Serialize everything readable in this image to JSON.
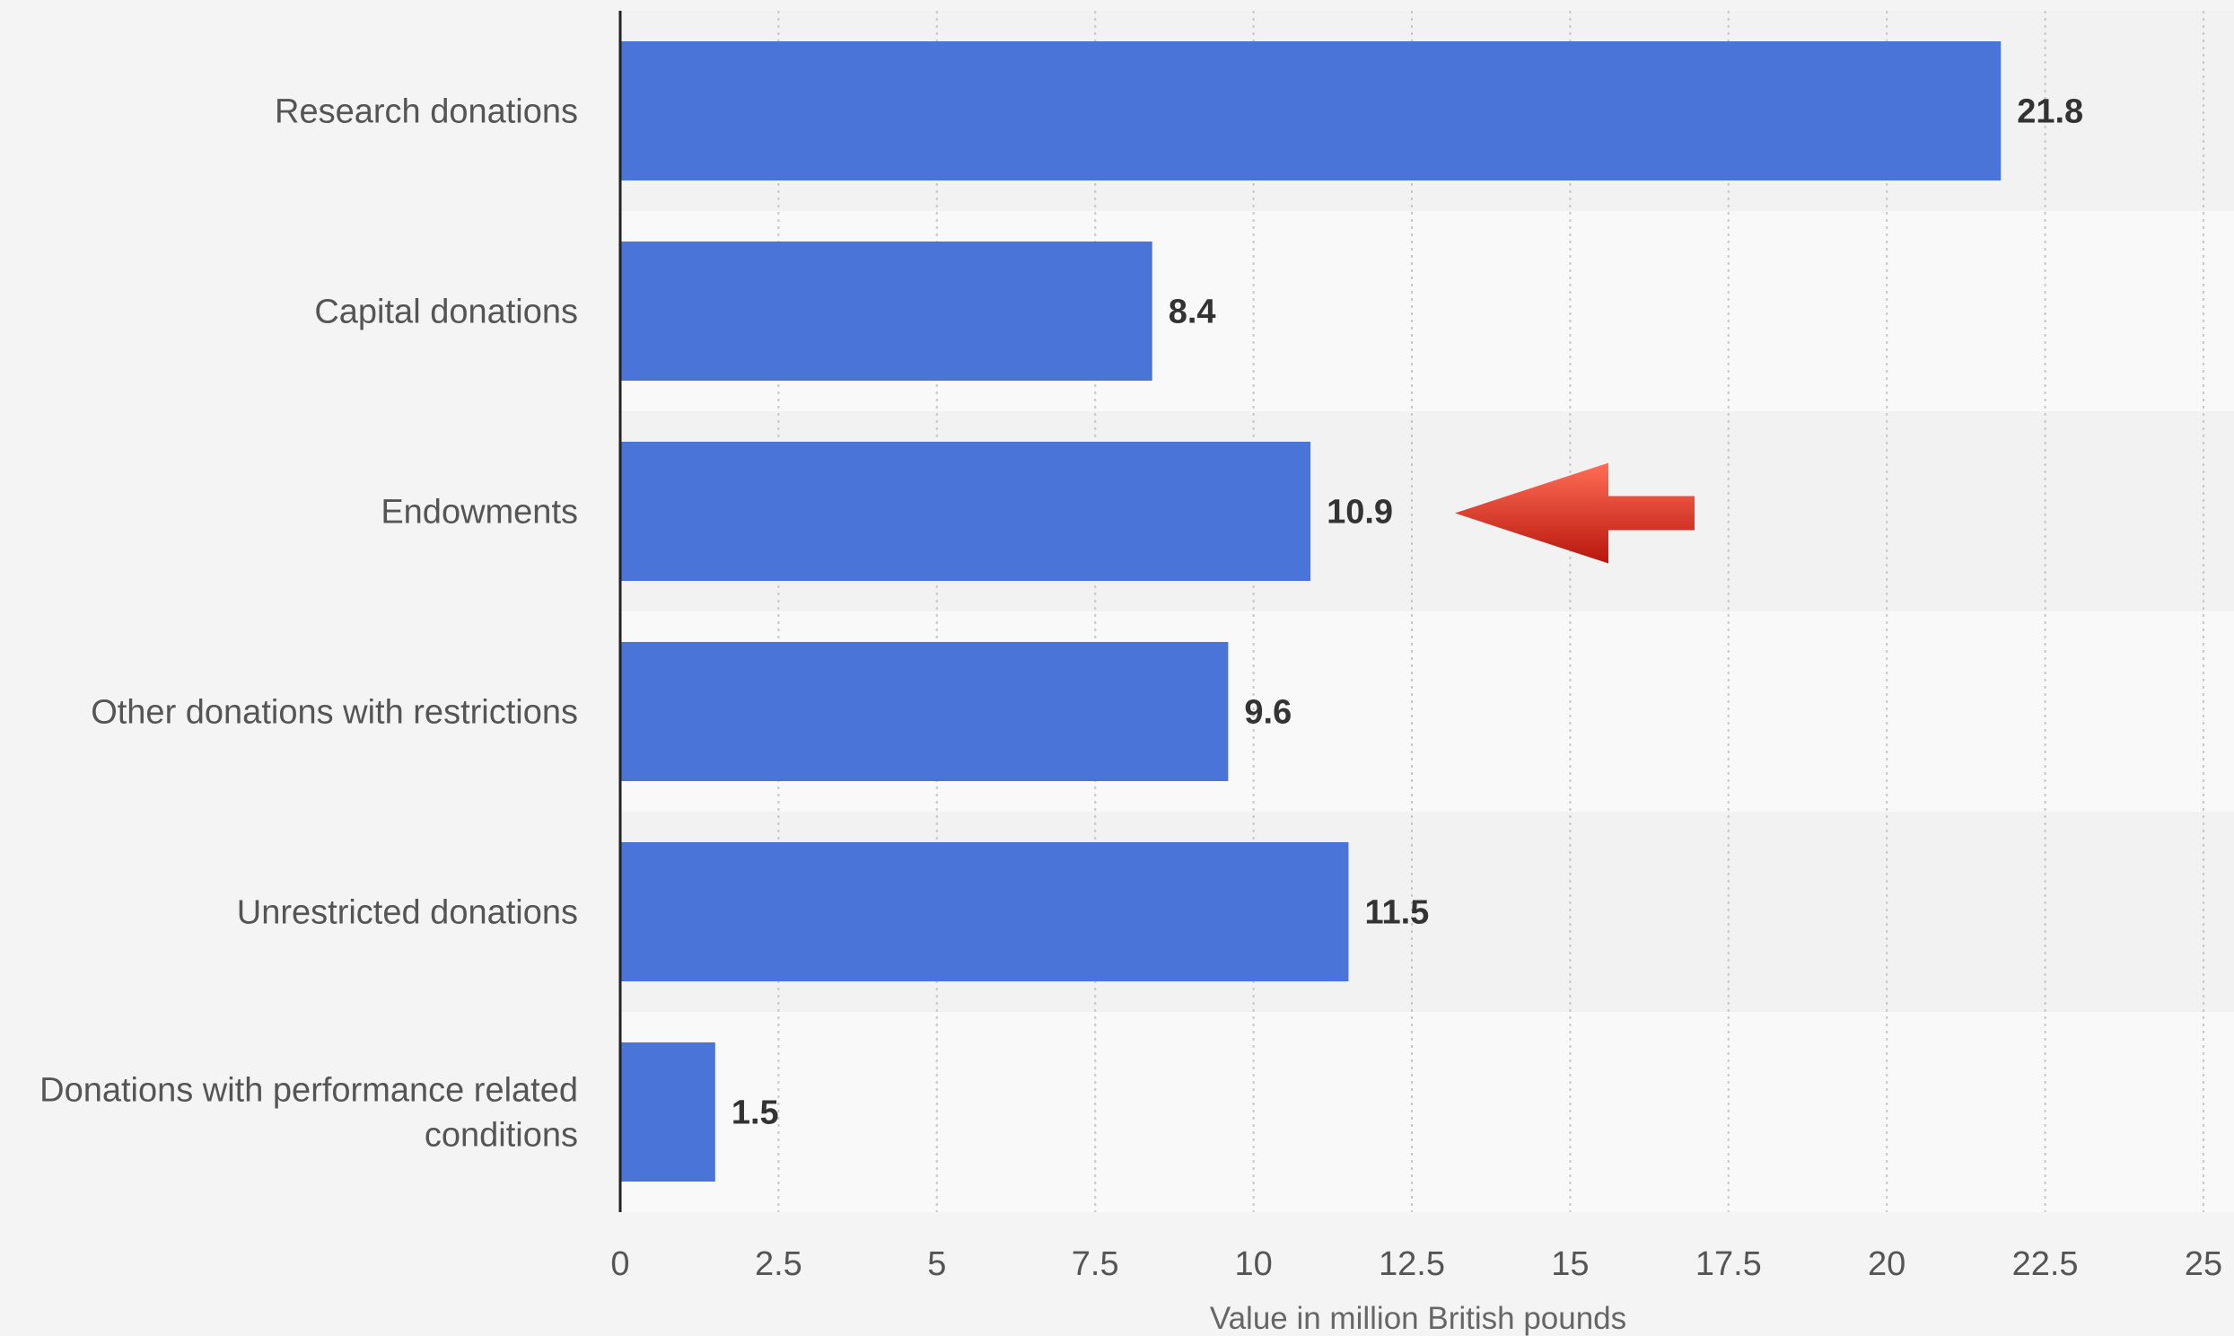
{
  "chart_data": {
    "type": "bar",
    "orientation": "horizontal",
    "categories": [
      "Research donations",
      "Capital donations",
      "Endowments",
      "Other donations with restrictions",
      "Unrestricted donations",
      "Donations with performance related conditions"
    ],
    "category_lines": [
      [
        "Research donations"
      ],
      [
        "Capital donations"
      ],
      [
        "Endowments"
      ],
      [
        "Other donations with restrictions"
      ],
      [
        "Unrestricted donations"
      ],
      [
        "Donations with performance related",
        "conditions"
      ]
    ],
    "values": [
      21.8,
      8.4,
      10.9,
      9.6,
      11.5,
      1.5
    ],
    "value_labels": [
      "21.8",
      "8.4",
      "10.9",
      "9.6",
      "11.5",
      "1.5"
    ],
    "xlabel": "Value in million British pounds",
    "ylabel": "",
    "xlim": [
      0,
      25
    ],
    "xticks": [
      0,
      2.5,
      5,
      7.5,
      10,
      12.5,
      15,
      17.5,
      20,
      22.5,
      25
    ],
    "xtick_labels": [
      "0",
      "2.5",
      "5",
      "7.5",
      "10",
      "12.5",
      "15",
      "17.5",
      "20",
      "22.5",
      "25"
    ],
    "grid": "vertical dotted",
    "highlight": {
      "category": "Endowments",
      "marker": "red-arrow-icon"
    },
    "colors": {
      "bar": "#4a74d7",
      "band_dark": "#f2f2f2",
      "band_light": "#f9f9f9",
      "arrow_light": "#ff6e56",
      "arrow_dark": "#b8160c"
    }
  }
}
